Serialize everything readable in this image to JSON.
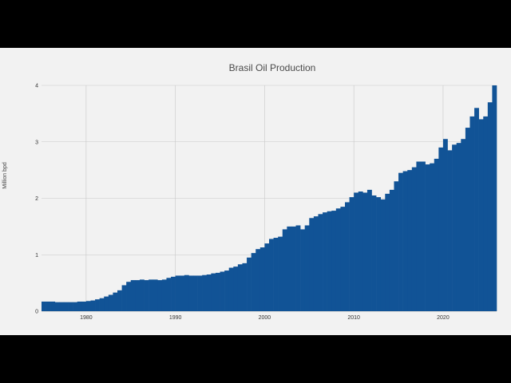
{
  "chart_data": {
    "type": "bar",
    "title": "Brasil Oil Production",
    "xlabel": "",
    "ylabel": "Million bpd",
    "xlim": [
      1975,
      2026
    ],
    "ylim": [
      0,
      4
    ],
    "yticks": [
      0,
      1,
      2,
      3,
      4
    ],
    "xticks": [
      1980,
      1990,
      2000,
      2010,
      2020
    ],
    "ytick_labels": [
      "0",
      "1",
      "2",
      "3",
      "4"
    ],
    "xtick_labels": [
      "1980",
      "1990",
      "2000",
      "2010",
      "2020"
    ],
    "grid": true,
    "color": "#115396",
    "points": [
      [
        1975.0,
        0.17
      ],
      [
        1975.5,
        0.17
      ],
      [
        1976.0,
        0.17
      ],
      [
        1976.5,
        0.16
      ],
      [
        1977.0,
        0.16
      ],
      [
        1977.5,
        0.16
      ],
      [
        1978.0,
        0.16
      ],
      [
        1978.5,
        0.16
      ],
      [
        1979.0,
        0.17
      ],
      [
        1979.5,
        0.17
      ],
      [
        1980.0,
        0.18
      ],
      [
        1980.5,
        0.19
      ],
      [
        1981.0,
        0.21
      ],
      [
        1981.5,
        0.23
      ],
      [
        1982.0,
        0.26
      ],
      [
        1982.5,
        0.29
      ],
      [
        1983.0,
        0.33
      ],
      [
        1983.5,
        0.37
      ],
      [
        1984.0,
        0.46
      ],
      [
        1984.5,
        0.52
      ],
      [
        1985.0,
        0.55
      ],
      [
        1985.5,
        0.55
      ],
      [
        1986.0,
        0.56
      ],
      [
        1986.5,
        0.55
      ],
      [
        1987.0,
        0.56
      ],
      [
        1987.5,
        0.56
      ],
      [
        1988.0,
        0.55
      ],
      [
        1988.5,
        0.56
      ],
      [
        1989.0,
        0.59
      ],
      [
        1989.5,
        0.61
      ],
      [
        1990.0,
        0.63
      ],
      [
        1990.5,
        0.63
      ],
      [
        1991.0,
        0.64
      ],
      [
        1991.5,
        0.63
      ],
      [
        1992.0,
        0.63
      ],
      [
        1992.5,
        0.63
      ],
      [
        1993.0,
        0.64
      ],
      [
        1993.5,
        0.65
      ],
      [
        1994.0,
        0.67
      ],
      [
        1994.5,
        0.68
      ],
      [
        1995.0,
        0.7
      ],
      [
        1995.5,
        0.72
      ],
      [
        1996.0,
        0.77
      ],
      [
        1996.5,
        0.79
      ],
      [
        1997.0,
        0.83
      ],
      [
        1997.5,
        0.85
      ],
      [
        1998.0,
        0.95
      ],
      [
        1998.5,
        1.03
      ],
      [
        1999.0,
        1.1
      ],
      [
        1999.5,
        1.13
      ],
      [
        2000.0,
        1.2
      ],
      [
        2000.5,
        1.28
      ],
      [
        2001.0,
        1.3
      ],
      [
        2001.5,
        1.32
      ],
      [
        2002.0,
        1.45
      ],
      [
        2002.5,
        1.5
      ],
      [
        2003.0,
        1.5
      ],
      [
        2003.5,
        1.52
      ],
      [
        2004.0,
        1.45
      ],
      [
        2004.5,
        1.52
      ],
      [
        2005.0,
        1.65
      ],
      [
        2005.5,
        1.68
      ],
      [
        2006.0,
        1.72
      ],
      [
        2006.5,
        1.75
      ],
      [
        2007.0,
        1.77
      ],
      [
        2007.5,
        1.78
      ],
      [
        2008.0,
        1.82
      ],
      [
        2008.5,
        1.85
      ],
      [
        2009.0,
        1.93
      ],
      [
        2009.5,
        2.02
      ],
      [
        2010.0,
        2.1
      ],
      [
        2010.5,
        2.12
      ],
      [
        2011.0,
        2.1
      ],
      [
        2011.5,
        2.15
      ],
      [
        2012.0,
        2.05
      ],
      [
        2012.5,
        2.02
      ],
      [
        2013.0,
        1.98
      ],
      [
        2013.5,
        2.08
      ],
      [
        2014.0,
        2.15
      ],
      [
        2014.5,
        2.3
      ],
      [
        2015.0,
        2.45
      ],
      [
        2015.5,
        2.48
      ],
      [
        2016.0,
        2.5
      ],
      [
        2016.5,
        2.55
      ],
      [
        2017.0,
        2.65
      ],
      [
        2017.5,
        2.65
      ],
      [
        2018.0,
        2.6
      ],
      [
        2018.5,
        2.62
      ],
      [
        2019.0,
        2.7
      ],
      [
        2019.5,
        2.9
      ],
      [
        2020.0,
        3.05
      ],
      [
        2020.5,
        2.85
      ],
      [
        2021.0,
        2.95
      ],
      [
        2021.5,
        2.98
      ],
      [
        2022.0,
        3.05
      ],
      [
        2022.5,
        3.25
      ],
      [
        2023.0,
        3.45
      ],
      [
        2023.5,
        3.6
      ],
      [
        2024.0,
        3.4
      ],
      [
        2024.5,
        3.45
      ],
      [
        2025.0,
        3.7
      ],
      [
        2025.5,
        4.0
      ]
    ]
  }
}
